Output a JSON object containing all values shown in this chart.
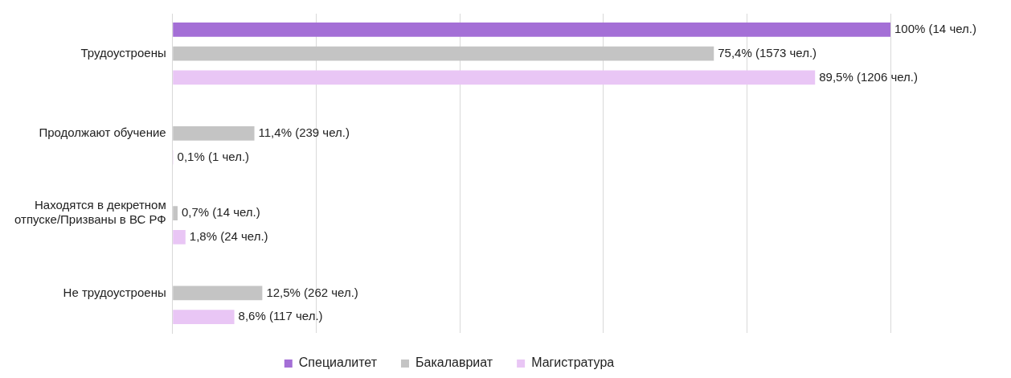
{
  "chart_data": {
    "type": "bar",
    "orientation": "horizontal",
    "categories": [
      "Трудоустроены",
      "Продолжают обучение",
      "Находятся в декретном отпуске/Призваны в ВС РФ",
      "Не трудоустроены"
    ],
    "series": [
      {
        "name": "Специалитет",
        "color": "#a46fd6",
        "values": [
          100,
          null,
          null,
          null
        ],
        "value_labels": [
          "100% (14 чел.)",
          null,
          null,
          null
        ]
      },
      {
        "name": "Бакалавриат",
        "color": "#c4c4c4",
        "values": [
          75.4,
          11.4,
          0.7,
          12.5
        ],
        "value_labels": [
          "75,4% (1573 чел.)",
          "11,4% (239 чел.)",
          "0,7% (14 чел.)",
          "12,5% (262 чел.)"
        ]
      },
      {
        "name": "Магистратура",
        "color": "#e9c6f5",
        "values": [
          89.5,
          0.1,
          1.8,
          8.6
        ],
        "value_labels": [
          "89,5% (1206 чел.)",
          "0,1% (1 чел.)",
          "1,8% (24 чел.)",
          "8,6% (117 чел.)"
        ]
      }
    ],
    "xlim": [
      0,
      100
    ],
    "xticks": [
      {
        "value": 0,
        "label": null
      },
      {
        "value": 20,
        "label": null
      },
      {
        "value": 40,
        "label": null
      },
      {
        "value": 60,
        "label": null
      },
      {
        "value": 80,
        "label": null
      },
      {
        "value": 100,
        "label": null
      }
    ],
    "grid": "x",
    "tick_labels": "y",
    "legend": "bottom"
  }
}
